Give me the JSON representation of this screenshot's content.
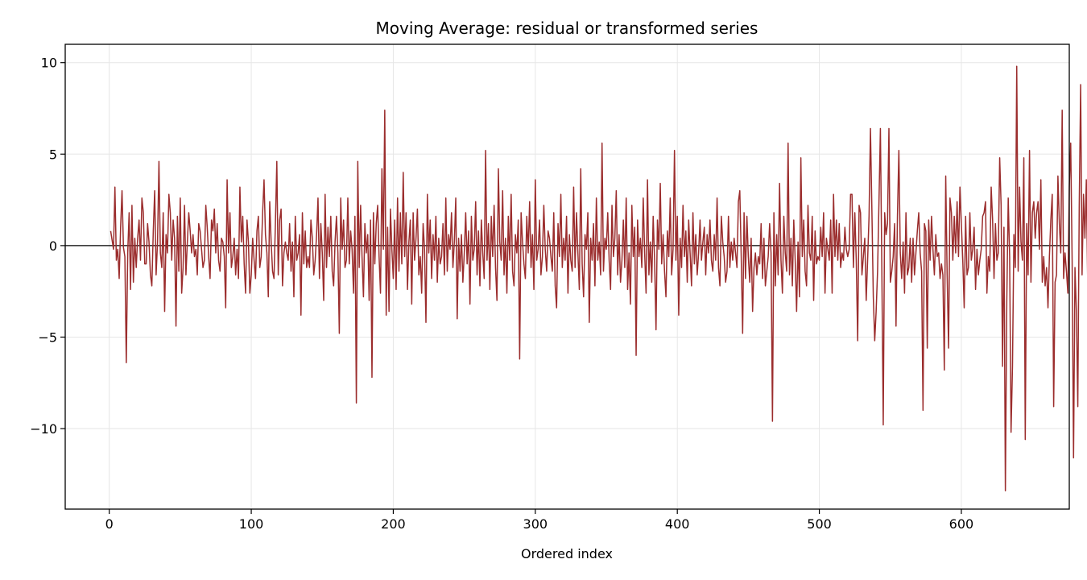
{
  "chart_data": {
    "type": "line",
    "title": "Moving Average: residual or transformed series",
    "xlabel": "Ordered index",
    "ylabel": "",
    "xlim": [
      -31,
      676
    ],
    "ylim": [
      -14.4,
      11.0
    ],
    "xticks": [
      0,
      100,
      200,
      300,
      400,
      500,
      600
    ],
    "yticks": [
      -10,
      -5,
      0,
      5,
      10
    ],
    "grid": true,
    "reference_line": 0,
    "colors": {
      "series": "#9b2d2d",
      "reference": "#000000",
      "grid": "#e6e6e6"
    },
    "series": [
      {
        "x_start": 1,
        "values": [
          0.8,
          0.3,
          -0.2,
          3.2,
          -0.8,
          -0.2,
          -1.8,
          1.0,
          3.0,
          -0.1,
          -0.6,
          -6.4,
          -0.4,
          1.8,
          -2.4,
          2.2,
          -2.0,
          0.4,
          -1.2,
          0.4,
          1.4,
          -0.8,
          2.6,
          1.8,
          -1.0,
          -1.0,
          1.2,
          0.2,
          -1.6,
          -2.2,
          0.8,
          3.0,
          -1.6,
          0.2,
          4.6,
          -0.4,
          -1.2,
          1.8,
          -3.6,
          0.6,
          -0.4,
          2.8,
          1.8,
          -0.8,
          1.4,
          0.4,
          -4.4,
          1.6,
          -1.4,
          2.6,
          -2.6,
          -1.2,
          2.2,
          -1.6,
          0.2,
          1.8,
          0.8,
          -0.4,
          0.6,
          -0.6,
          -0.2,
          -1.6,
          1.2,
          0.8,
          -0.2,
          -1.2,
          -0.8,
          2.2,
          1.0,
          -0.6,
          -1.8,
          1.4,
          0.8,
          2.0,
          -0.4,
          1.2,
          -0.8,
          -1.4,
          0.4,
          0.2,
          -0.6,
          -3.4,
          3.6,
          -0.4,
          1.8,
          -1.2,
          -0.6,
          0.4,
          -1.6,
          -0.2,
          -1.8,
          3.2,
          0.2,
          1.6,
          -1.0,
          -2.6,
          1.4,
          0.2,
          -2.6,
          -1.6,
          0.4,
          -0.8,
          -1.8,
          0.8,
          1.6,
          -1.2,
          -0.6,
          1.8,
          3.6,
          0.6,
          -0.4,
          -2.8,
          2.4,
          0.2,
          -1.4,
          -1.8,
          1.2,
          4.6,
          -1.6,
          1.4,
          2.0,
          -2.2,
          -0.4,
          0.2,
          -0.4,
          -0.8,
          1.2,
          -1.4,
          0.2,
          -2.8,
          1.6,
          -0.8,
          -0.4,
          0.6,
          -3.8,
          1.8,
          -1.0,
          0.8,
          -1.2,
          -0.6,
          -1.2,
          1.4,
          0.4,
          -1.6,
          -0.8,
          0.6,
          2.6,
          -1.8,
          1.2,
          -0.4,
          -3.0,
          2.8,
          -1.2,
          1.0,
          -0.6,
          1.6,
          -1.4,
          -2.2,
          0.2,
          1.6,
          -0.4,
          -4.8,
          2.6,
          -0.2,
          1.4,
          -1.2,
          -0.8,
          2.6,
          -1.0,
          0.8,
          -0.2,
          -2.6,
          1.6,
          -8.6,
          4.6,
          -1.2,
          2.2,
          -0.6,
          -2.8,
          1.2,
          -0.4,
          0.6,
          -3.0,
          1.4,
          -7.2,
          1.8,
          -1.0,
          1.2,
          2.2,
          -0.6,
          -2.6,
          4.2,
          -0.2,
          7.4,
          -3.8,
          1.0,
          -3.6,
          2.0,
          -0.2,
          -1.8,
          1.4,
          -2.4,
          2.6,
          -1.4,
          1.8,
          -1.0,
          4.0,
          -0.6,
          1.8,
          -2.4,
          0.2,
          1.4,
          -3.2,
          1.8,
          -0.8,
          0.4,
          2.0,
          -1.6,
          -0.6,
          -2.6,
          1.2,
          -0.2,
          -4.2,
          2.8,
          -0.4,
          1.4,
          -1.8,
          0.6,
          -0.8,
          1.6,
          -2.0,
          0.4,
          -1.0,
          -0.6,
          1.2,
          -1.6,
          2.6,
          -1.4,
          0.6,
          -0.2,
          1.8,
          -1.2,
          0.2,
          2.6,
          -4.0,
          0.4,
          -1.4,
          0.6,
          -2.0,
          -0.4,
          1.8,
          -1.0,
          0.8,
          -3.2,
          1.6,
          -0.8,
          -0.2,
          2.4,
          -1.6,
          0.8,
          -2.2,
          1.4,
          -0.4,
          -1.8,
          5.2,
          -0.8,
          1.2,
          -2.4,
          1.6,
          -0.6,
          2.2,
          -1.2,
          -3.0,
          4.2,
          0.2,
          -0.8,
          3.0,
          -1.6,
          0.4,
          -2.6,
          1.6,
          -0.8,
          2.8,
          -1.4,
          -2.2,
          0.6,
          -0.4,
          1.4,
          -6.2,
          1.8,
          0.2,
          -1.0,
          -1.8,
          1.6,
          -0.4,
          2.4,
          -1.2,
          0.6,
          -2.4,
          3.6,
          -0.8,
          -0.2,
          1.4,
          -1.6,
          -0.6,
          2.2,
          -0.2,
          -1.4,
          0.8,
          0.4,
          -0.6,
          -1.4,
          1.8,
          -2.2,
          -3.4,
          1.2,
          -0.6,
          2.8,
          -1.2,
          0.4,
          -0.8,
          1.6,
          -2.6,
          0.6,
          -0.8,
          -1.4,
          3.2,
          -1.2,
          1.8,
          -0.4,
          -2.4,
          4.2,
          -1.0,
          -2.8,
          0.6,
          -0.2,
          1.8,
          -4.2,
          0.4,
          -0.8,
          1.2,
          -2.2,
          2.6,
          -0.8,
          0.2,
          -1.6,
          5.6,
          -1.4,
          0.4,
          -0.2,
          1.8,
          -0.8,
          -2.4,
          2.2,
          -0.6,
          0.4,
          3.0,
          -1.6,
          0.6,
          -2.0,
          -0.8,
          1.4,
          -1.2,
          2.6,
          -2.4,
          -0.4,
          -3.2,
          2.2,
          -0.6,
          1.0,
          -6.0,
          1.4,
          -0.6,
          0.4,
          -1.2,
          2.6,
          -0.4,
          -2.6,
          3.6,
          -1.6,
          0.2,
          -2.0,
          1.6,
          -0.8,
          -4.6,
          1.4,
          -0.2,
          3.4,
          -1.0,
          0.6,
          -1.4,
          -2.8,
          0.8,
          -0.6,
          2.6,
          -1.6,
          -0.2,
          5.2,
          -0.8,
          1.6,
          -3.8,
          0.4,
          -1.2,
          2.2,
          -0.6,
          0.8,
          -2.0,
          1.4,
          -0.4,
          -2.2,
          1.8,
          -1.0,
          0.6,
          -1.6,
          -0.4,
          1.4,
          -0.8,
          0.2,
          1.0,
          -1.6,
          0.6,
          -0.4,
          1.4,
          -0.8,
          -1.4,
          0.6,
          -0.8,
          2.6,
          -1.2,
          -2.2,
          1.6,
          0.2,
          -0.6,
          -2.0,
          -1.4,
          1.6,
          -1.2,
          0.2,
          -0.8,
          0.4,
          -0.4,
          -1.2,
          2.4,
          3.0,
          -0.6,
          -4.8,
          1.8,
          -1.8,
          1.6,
          -0.6,
          -2.0,
          0.4,
          -3.6,
          -1.2,
          -0.4,
          -1.6,
          -0.6,
          -1.0,
          1.2,
          -1.8,
          0.4,
          -2.2,
          -1.4,
          -0.6,
          1.2,
          -0.4,
          -9.6,
          1.8,
          -2.2,
          0.6,
          -1.6,
          3.4,
          -0.8,
          -2.6,
          1.6,
          -0.4,
          -1.4,
          5.6,
          -1.6,
          0.4,
          -2.2,
          1.4,
          -0.8,
          -3.6,
          0.2,
          -2.8,
          4.8,
          -0.6,
          1.4,
          -1.4,
          -2.2,
          2.2,
          -0.4,
          -0.8,
          1.6,
          -3.0,
          0.8,
          -1.0,
          -0.6,
          -0.8,
          1.0,
          -0.6,
          1.8,
          -2.6,
          0.4,
          -0.2,
          -0.8,
          1.4,
          -2.6,
          2.8,
          -0.6,
          1.4,
          -0.8,
          1.2,
          -1.2,
          -0.4,
          -0.8,
          1.0,
          -0.2,
          -0.6,
          -0.2,
          2.8,
          2.8,
          -1.2,
          1.8,
          -0.8,
          -5.2,
          2.2,
          1.8,
          -1.6,
          -0.6,
          0.4,
          -3.0,
          -0.8,
          1.6,
          6.4,
          2.0,
          -2.8,
          -5.2,
          -3.6,
          -1.4,
          2.4,
          6.4,
          -1.2,
          -9.8,
          1.8,
          0.6,
          1.2,
          6.4,
          -2.0,
          -1.4,
          -0.6,
          1.2,
          -4.4,
          1.6,
          5.2,
          -0.4,
          -1.8,
          0.2,
          -2.6,
          1.8,
          -1.6,
          -1.2,
          0.4,
          -2.0,
          0.4,
          -1.6,
          -0.4,
          0.8,
          1.8,
          -0.4,
          -1.4,
          -9.0,
          1.2,
          0.8,
          -5.6,
          1.4,
          -0.8,
          1.6,
          -0.2,
          -1.6,
          0.6,
          -0.6,
          -0.4,
          -1.8,
          -1.0,
          -1.6,
          -6.8,
          3.8,
          -1.6,
          -5.6,
          2.6,
          1.8,
          -0.8,
          1.6,
          -0.4,
          2.4,
          -0.6,
          3.2,
          1.2,
          -0.8,
          -3.4,
          1.6,
          -1.6,
          -1.2,
          1.8,
          -0.8,
          -0.2,
          1.0,
          -2.4,
          -0.2,
          -1.6,
          -0.8,
          -0.2,
          1.6,
          1.8,
          2.4,
          -2.6,
          -0.6,
          -1.4,
          3.2,
          1.4,
          -1.8,
          1.2,
          -0.8,
          -0.4,
          4.8,
          2.2,
          -6.6,
          1.0,
          -13.4,
          -3.0,
          2.6,
          -0.6,
          -10.2,
          -6.6,
          0.6,
          -1.2,
          9.8,
          -1.4,
          3.2,
          0.2,
          -0.8,
          4.8,
          -10.6,
          1.2,
          -1.6,
          5.2,
          -2.0,
          1.8,
          2.4,
          0.4,
          1.8,
          2.4,
          -0.2,
          3.6,
          -2.0,
          -0.6,
          -2.2,
          -1.2,
          -3.4,
          -0.6,
          1.4,
          2.8,
          -8.8,
          -2.0,
          -1.6,
          3.8,
          1.2,
          -0.4,
          7.4,
          -1.8,
          -0.4,
          -1.4,
          -2.6,
          3.2,
          5.6,
          -0.8,
          -11.6,
          -1.2,
          -3.6,
          -8.8,
          2.2,
          8.8,
          -1.6,
          2.8,
          0.4,
          3.6,
          -2.2,
          -0.4,
          -0.2
        ]
      }
    ]
  }
}
